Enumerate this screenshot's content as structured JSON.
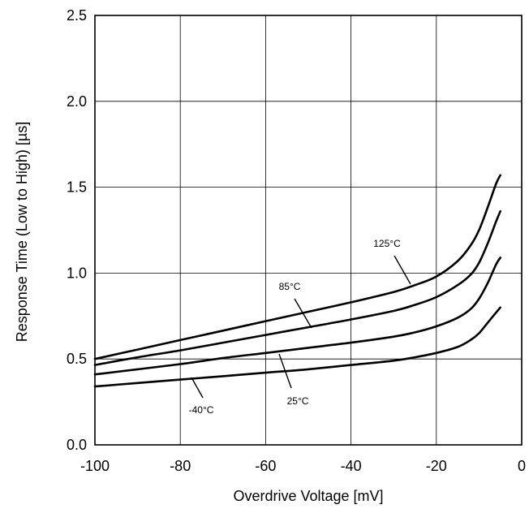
{
  "chart_data": {
    "type": "line",
    "title": "",
    "xlabel": "Overdrive Voltage [mV]",
    "ylabel": "Response Time (Low to High) [µs]",
    "xlim": [
      -100,
      0
    ],
    "ylim": [
      0.0,
      2.5
    ],
    "xticks": [
      -100,
      -80,
      -60,
      -40,
      -20,
      0
    ],
    "xtick_labels": [
      "-100",
      "-80",
      "-60",
      "-40",
      "-20",
      "0"
    ],
    "yticks": [
      0.0,
      0.5,
      1.0,
      1.5,
      2.0,
      2.5
    ],
    "ytick_labels": [
      "0.0",
      "0.5",
      "1.0",
      "1.5",
      "2.0",
      "2.5"
    ],
    "grid": true,
    "series": [
      {
        "name": "125°C",
        "x": [
          -100,
          -90,
          -80,
          -70,
          -60,
          -50,
          -40,
          -30,
          -25,
          -20,
          -15,
          -12,
          -10,
          -8,
          -6,
          -5
        ],
        "y": [
          0.5,
          0.555,
          0.61,
          0.665,
          0.72,
          0.775,
          0.83,
          0.89,
          0.93,
          0.98,
          1.07,
          1.16,
          1.25,
          1.38,
          1.52,
          1.57
        ]
      },
      {
        "name": "85°C",
        "x": [
          -100,
          -90,
          -80,
          -70,
          -60,
          -50,
          -40,
          -30,
          -25,
          -20,
          -15,
          -12,
          -10,
          -8,
          -6,
          -5
        ],
        "y": [
          0.465,
          0.51,
          0.55,
          0.595,
          0.64,
          0.685,
          0.73,
          0.78,
          0.815,
          0.86,
          0.93,
          0.99,
          1.06,
          1.17,
          1.3,
          1.36
        ]
      },
      {
        "name": "25°C",
        "x": [
          -100,
          -90,
          -80,
          -70,
          -60,
          -50,
          -40,
          -30,
          -25,
          -20,
          -15,
          -12,
          -10,
          -8,
          -6,
          -5
        ],
        "y": [
          0.41,
          0.44,
          0.47,
          0.505,
          0.535,
          0.565,
          0.595,
          0.63,
          0.655,
          0.69,
          0.74,
          0.79,
          0.85,
          0.94,
          1.05,
          1.09
        ]
      },
      {
        "name": "-40°C",
        "x": [
          -100,
          -90,
          -80,
          -70,
          -60,
          -50,
          -40,
          -30,
          -25,
          -20,
          -15,
          -12,
          -10,
          -8,
          -6,
          -5
        ],
        "y": [
          0.34,
          0.36,
          0.38,
          0.4,
          0.42,
          0.44,
          0.465,
          0.49,
          0.51,
          0.535,
          0.57,
          0.61,
          0.65,
          0.71,
          0.77,
          0.8
        ]
      }
    ]
  }
}
